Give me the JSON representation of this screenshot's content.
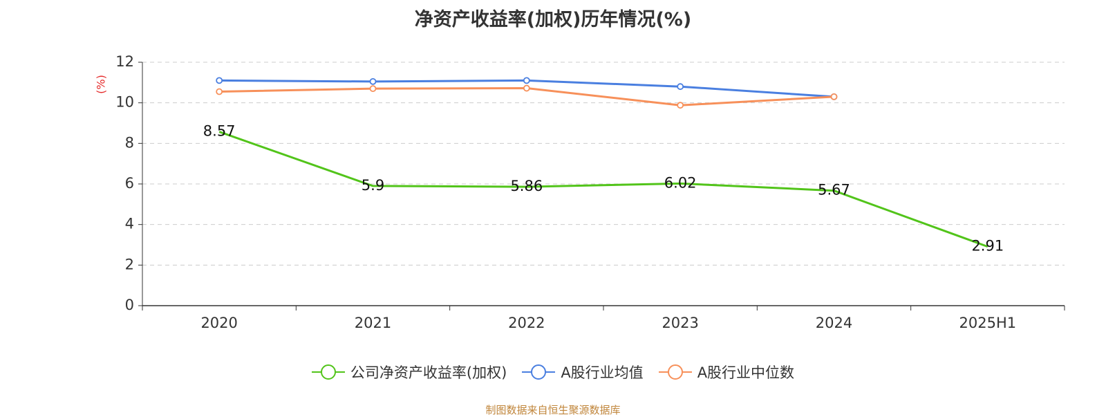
{
  "title": "净资产收益率(加权)历年情况(%)",
  "source": "制图数据来自恒生聚源数据库",
  "colors": {
    "company": "#52c41a",
    "avg": "#4a7fe0",
    "median": "#f7905a",
    "unit": "#e52b2b"
  },
  "legend": [
    {
      "label": "公司净资产收益率(加权)",
      "color": "#52c41a"
    },
    {
      "label": "A股行业均值",
      "color": "#4a7fe0"
    },
    {
      "label": "A股行业中位数",
      "color": "#f7905a"
    }
  ],
  "chart_data": {
    "type": "line",
    "title": "净资产收益率(加权)历年情况(%)",
    "ylabel": "(%)",
    "xlabel": "",
    "ylim": [
      0,
      12
    ],
    "yticks": [
      0,
      2,
      4,
      6,
      8,
      10,
      12
    ],
    "categories": [
      "2020",
      "2021",
      "2022",
      "2023",
      "2024",
      "2025H1"
    ],
    "grid": true,
    "legend_position": "bottom",
    "series": [
      {
        "name": "公司净资产收益率(加权)",
        "color": "#52c41a",
        "values": [
          8.57,
          5.9,
          5.86,
          6.02,
          5.67,
          2.91
        ],
        "labels": [
          "8.57",
          "5.9",
          "5.86",
          "6.02",
          "5.67",
          "2.91"
        ],
        "show_symbols": false
      },
      {
        "name": "A股行业均值",
        "color": "#4a7fe0",
        "values": [
          11.1,
          11.05,
          11.1,
          10.8,
          10.3,
          null
        ],
        "show_symbols": true
      },
      {
        "name": "A股行业中位数",
        "color": "#f7905a",
        "values": [
          10.55,
          10.7,
          10.72,
          9.88,
          10.3,
          null
        ],
        "show_symbols": true
      }
    ]
  }
}
